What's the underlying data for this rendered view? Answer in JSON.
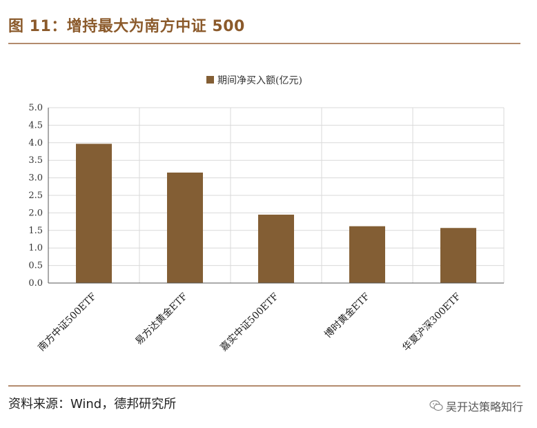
{
  "figure": {
    "title": "图 11：增持最大为南方中证 500",
    "source": "资料来源：Wind，德邦研究所",
    "watermark": "吴开达策略知行"
  },
  "colors": {
    "accent": "#8b5a2b",
    "rule": "#b38b6d",
    "bar": "#835e34",
    "grid": "#d9d9d9"
  },
  "chart_data": {
    "type": "bar",
    "categories": [
      "南方中证500ETF",
      "易方达黄金ETF",
      "嘉实中证500ETF",
      "博时黄金ETF",
      "华夏沪深300ETF"
    ],
    "series": [
      {
        "name": "期间净买入额(亿元)",
        "values": [
          3.97,
          3.15,
          1.95,
          1.62,
          1.57
        ]
      }
    ],
    "yticks": [
      "0.0",
      "0.5",
      "1.0",
      "1.5",
      "2.0",
      "2.5",
      "3.0",
      "3.5",
      "4.0",
      "4.5",
      "5.0"
    ],
    "ylim": [
      0,
      5
    ],
    "grid": true,
    "legend": "top-center"
  }
}
